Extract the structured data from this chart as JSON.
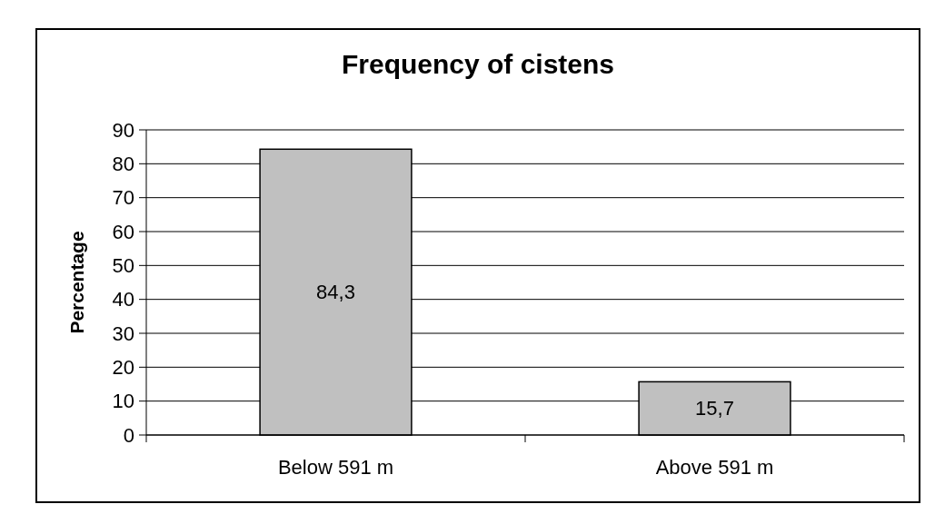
{
  "chart_data": {
    "type": "bar",
    "title": "Frequency of cistens",
    "ylabel": "Percentage",
    "categories": [
      "Below 591 m",
      "Above 591 m"
    ],
    "values": [
      84.3,
      15.7
    ],
    "value_labels": [
      "84,3",
      "15,7"
    ],
    "color": "#c0c0c0",
    "ylim": [
      0,
      90
    ],
    "yticks": [
      0,
      10,
      20,
      30,
      40,
      50,
      60,
      70,
      80,
      90
    ],
    "grid": "y"
  }
}
